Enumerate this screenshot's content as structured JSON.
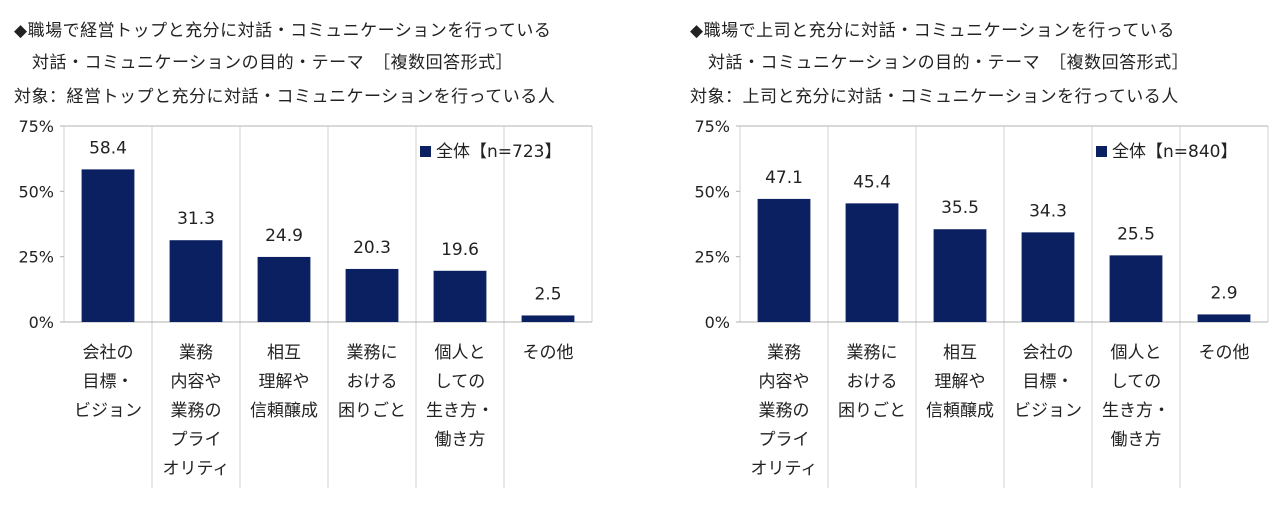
{
  "chart_data": [
    {
      "type": "bar",
      "title_lines": [
        "◆職場で経営トップと充分に対話・コミュニケーションを行っている",
        "対話・コミュニケーションの目的・テーマ　［複数回答形式］",
        "対象：経営トップと充分に対話・コミュニケーションを行っている人"
      ],
      "legend": "全体【n=723】",
      "ylim": [
        0,
        75
      ],
      "yticks": [
        "0%",
        "25%",
        "50%",
        "75%"
      ],
      "ytick_values": [
        0,
        25,
        50,
        75
      ],
      "categories": [
        [
          "会社の",
          "目標・",
          "ビジョン"
        ],
        [
          "業務",
          "内容や",
          "業務の",
          "プライ",
          "オリティ"
        ],
        [
          "相互",
          "理解や",
          "信頼醸成"
        ],
        [
          "業務に",
          "おける",
          "困りごと"
        ],
        [
          "個人と",
          "しての",
          "生き方・",
          "働き方"
        ],
        [
          "その他"
        ]
      ],
      "values": [
        58.4,
        31.3,
        24.9,
        20.3,
        19.6,
        2.5
      ],
      "labels": [
        "58.4",
        "31.3",
        "24.9",
        "20.3",
        "19.6",
        "2.5"
      ],
      "bar_color": "#0b2060"
    },
    {
      "type": "bar",
      "title_lines": [
        "◆職場で上司と充分に対話・コミュニケーションを行っている",
        "対話・コミュニケーションの目的・テーマ　［複数回答形式］",
        "対象：上司と充分に対話・コミュニケーションを行っている人"
      ],
      "legend": "全体【n=840】",
      "ylim": [
        0,
        75
      ],
      "yticks": [
        "0%",
        "25%",
        "50%",
        "75%"
      ],
      "ytick_values": [
        0,
        25,
        50,
        75
      ],
      "categories": [
        [
          "業務",
          "内容や",
          "業務の",
          "プライ",
          "オリティ"
        ],
        [
          "業務に",
          "おける",
          "困りごと"
        ],
        [
          "相互",
          "理解や",
          "信頼醸成"
        ],
        [
          "会社の",
          "目標・",
          "ビジョン"
        ],
        [
          "個人と",
          "しての",
          "生き方・",
          "働き方"
        ],
        [
          "その他"
        ]
      ],
      "values": [
        47.1,
        45.4,
        35.5,
        34.3,
        25.5,
        2.9
      ],
      "labels": [
        "47.1",
        "45.4",
        "35.5",
        "34.3",
        "25.5",
        "2.9"
      ],
      "bar_color": "#0b2060"
    }
  ]
}
